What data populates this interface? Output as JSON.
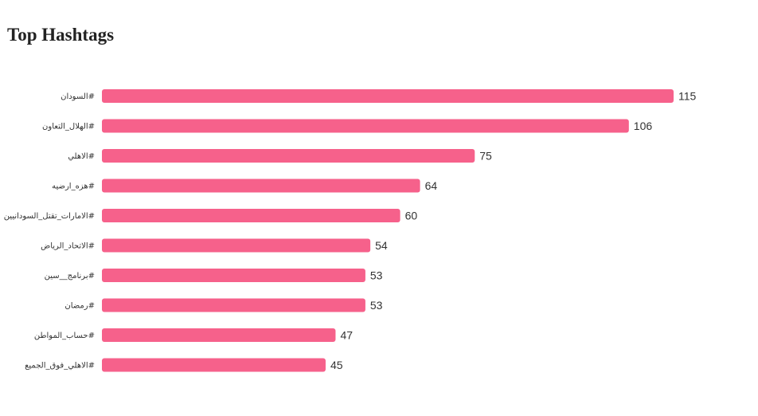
{
  "title": "Top Hashtags",
  "chart_data": {
    "type": "bar",
    "orientation": "horizontal",
    "title": "Top Hashtags",
    "categories": [
      "السودان#",
      "الهلال_التعاون#",
      "الاهلي#",
      "هزه_ارضيه#",
      "الامارات_تقتل_السودانيين#",
      "الاتحاد_الرياض#",
      "برنامج__سين#",
      "رمضان#",
      "حساب_المواطن#",
      "الاهلي_فوق_الجميع#"
    ],
    "values": [
      115,
      106,
      75,
      64,
      60,
      54,
      53,
      53,
      47,
      45
    ],
    "xlim": [
      0,
      115
    ],
    "grid": false,
    "colors": {
      "bar": "#f6618b",
      "label": "#333333"
    }
  }
}
